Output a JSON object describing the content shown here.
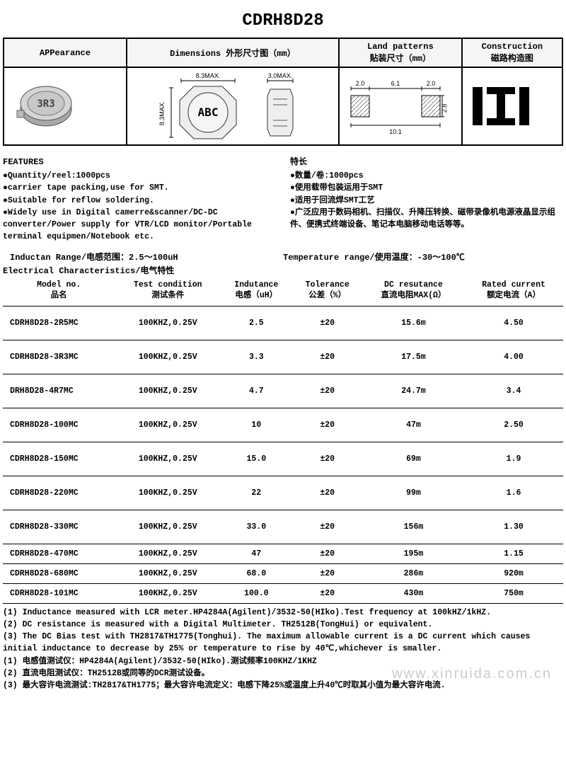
{
  "title": "CDRH8D28",
  "header": {
    "cols": [
      "APPearance",
      "Dimensions 外形尺寸图（mm）",
      "Land patterns\n贴装尺寸（mm）",
      "Construction\n磁路构造图"
    ],
    "appearance_label": "3R3",
    "dimensions": {
      "w": "8.3MAX.",
      "h": "8.3MAX.",
      "t": "3.0MAX.",
      "text": "ABC"
    },
    "land": {
      "a": "2.0",
      "b": "6.1",
      "c": "2.0",
      "d": "2.8",
      "e": "10.1"
    }
  },
  "features": {
    "left_title": "FEATURES",
    "left": [
      "●Quantity/reel:1000pcs",
      "●carrier tape packing,use for SMT.",
      "●Suitable for reflow soldering.",
      "●Widely use in Digital camerre&scanner/DC-DC converter/Power supply for VTR/LCD monitor/Portable terminal equipmen/Notebook etc."
    ],
    "right_title": "特长",
    "right": [
      "●数量/卷:1000pcs",
      "●使用载带包装运用于SMT",
      "●适用于回流焊SMT工艺",
      "●广泛应用于数码相机、扫描仪、升降压转换、磁带录像机电源液晶显示组件、便携式终端设备、笔记本电脑移动电话等等。"
    ]
  },
  "range": {
    "inductance": "Inductan Range/电感范围：2.5～100uH",
    "temperature": "Temperature range/使用温度：-30～100℃"
  },
  "elec_title": "Electrical Characteristics/电气特性",
  "spec_headers": [
    {
      "a": "Model no.",
      "b": "品名"
    },
    {
      "a": "Test condition",
      "b": "测试条件"
    },
    {
      "a": "Indutance",
      "b": "电感（uH）"
    },
    {
      "a": "Tolerance",
      "b": "公差（%）"
    },
    {
      "a": "DC resutance",
      "b": "直流电阻MAX(Ω）"
    },
    {
      "a": "Rated current",
      "b": "额定电流（A）"
    }
  ],
  "rows": [
    {
      "m": "CDRH8D28-2R5MC",
      "tc": "100KHZ,0.25V",
      "l": "2.5",
      "tol": "±20",
      "dcr": "15.6m",
      "i": "4.50",
      "h": "tall"
    },
    {
      "m": "CDRH8D28-3R3MC",
      "tc": "100KHZ,0.25V",
      "l": "3.3",
      "tol": "±20",
      "dcr": "17.5m",
      "i": "4.00",
      "h": "tall"
    },
    {
      "m": "DRH8D28-4R7MC",
      "tc": "100KHZ,0.25V",
      "l": "4.7",
      "tol": "±20",
      "dcr": "24.7m",
      "i": "3.4",
      "h": "tall"
    },
    {
      "m": "CDRH8D28-100MC",
      "tc": "100KHZ,0.25V",
      "l": "10",
      "tol": "±20",
      "dcr": "47m",
      "i": "2.50",
      "h": "tall"
    },
    {
      "m": "CDRH8D28-150MC",
      "tc": "100KHZ,0.25V",
      "l": "15.0",
      "tol": "±20",
      "dcr": "69m",
      "i": "1.9",
      "h": "tall"
    },
    {
      "m": "CDRH8D28-220MC",
      "tc": "100KHZ,0.25V",
      "l": "22",
      "tol": "±20",
      "dcr": "99m",
      "i": "1.6",
      "h": "tall"
    },
    {
      "m": "CDRH8D28-330MC",
      "tc": "100KHZ,0.25V",
      "l": "33.0",
      "tol": "±20",
      "dcr": "156m",
      "i": "1.30",
      "h": "tall"
    },
    {
      "m": "CDRH8D28-470MC",
      "tc": "100KHZ,0.25V",
      "l": "47",
      "tol": "±20",
      "dcr": "195m",
      "i": "1.15",
      "h": "med"
    },
    {
      "m": "CDRH8D28-680MC",
      "tc": "100KHZ,0.25V",
      "l": "68.0",
      "tol": "±20",
      "dcr": "286m",
      "i": "920m",
      "h": "med"
    },
    {
      "m": "CDRH8D28-101MC",
      "tc": "100KHZ,0.25V",
      "l": "100.0",
      "tol": "±20",
      "dcr": "430m",
      "i": "750m",
      "h": "med"
    }
  ],
  "notes": [
    "(1) Inductance measured with LCR meter.HP4284A(Agilent)/3532-50(HIko).Test frequency at 100kHZ/1kHZ.",
    "(2) DC resistance is measured with a Digital Multimeter.  TH2512B(TongHui) or equivalent.",
    "(3) The DC Bias test with TH2817&TH1775(Tonghui). The maximum allowable current is a DC current which causes initial inductance to decrease by 25% or temperature to rise by 40℃,whichever is smaller.",
    "(1) 电感值测试仪：HP4284A(Agilent)/3532-50(HIko).测试频率100KHZ/1KHZ",
    "(2) 直流电阻测试仪：TH2512B或同等的DCR测试设备。",
    "(3) 最大容许电流测试:TH2817&TH1775；最大容许电流定义：电感下降25%或温度上升40℃时取其小值为最大容许电流."
  ],
  "watermark": "www.xinruida.com.cn",
  "colors": {
    "border": "#000000",
    "bg": "#ffffff",
    "header_bg": "#f5f5f5",
    "watermark": "#cccccc",
    "hatch": "#888888"
  }
}
